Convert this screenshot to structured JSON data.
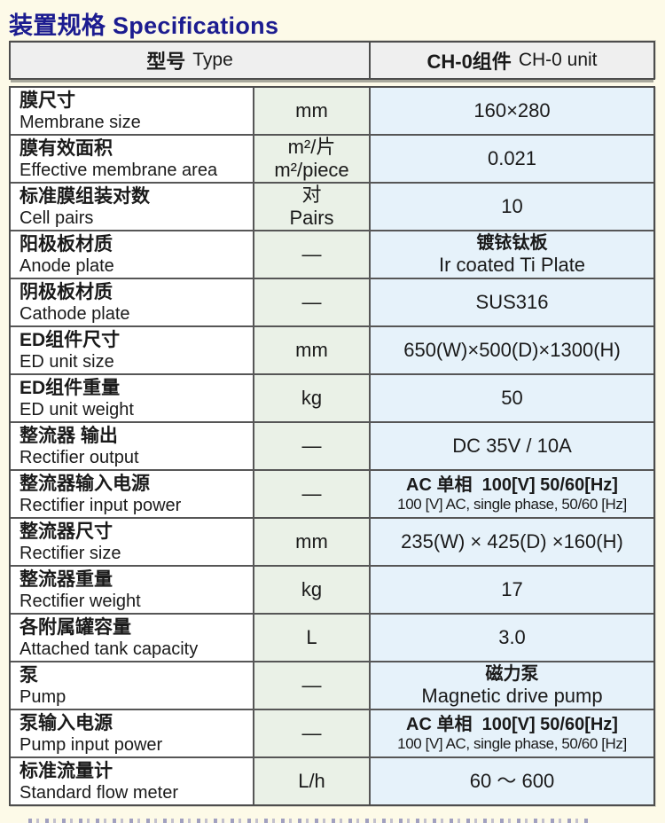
{
  "title": "装置规格 Specifications",
  "header": {
    "type_zh": "型号",
    "type_en": "Type",
    "model_zh": "CH-0组件",
    "model_en": "CH-0 unit"
  },
  "table": {
    "rows": [
      {
        "label_zh": "膜尺寸",
        "label_en": "Membrane size",
        "unit_lines": [
          "mm"
        ],
        "value_lines": [
          "160×280"
        ]
      },
      {
        "label_zh": "膜有效面积",
        "label_en": "Effective membrane area",
        "unit_lines": [
          "m²/片",
          "m²/piece"
        ],
        "value_lines": [
          "0.021"
        ]
      },
      {
        "label_zh": "标准膜组装对数",
        "label_en": "Cell pairs",
        "unit_lines": [
          "对",
          "Pairs"
        ],
        "value_lines": [
          "10"
        ]
      },
      {
        "label_zh": "阳极板材质",
        "label_en": "Anode plate",
        "unit_lines": [
          "—"
        ],
        "value_lines": [
          "镀铱钛板",
          "Ir coated Ti Plate"
        ]
      },
      {
        "label_zh": "阴极板材质",
        "label_en": "Cathode plate",
        "unit_lines": [
          "—"
        ],
        "value_lines": [
          "SUS316"
        ]
      },
      {
        "label_zh": "ED组件尺寸",
        "label_en": "ED unit size",
        "unit_lines": [
          "mm"
        ],
        "value_lines": [
          "650(W)×500(D)×1300(H)"
        ]
      },
      {
        "label_zh": "ED组件重量",
        "label_en": "ED unit weight",
        "unit_lines": [
          "kg"
        ],
        "value_lines": [
          "50"
        ]
      },
      {
        "label_zh": "整流器 输出",
        "label_en": "Rectifier output",
        "unit_lines": [
          "—"
        ],
        "value_lines": [
          "DC 35V / 10A"
        ]
      },
      {
        "label_zh": "整流器输入电源",
        "label_en": "Rectifier input power",
        "unit_lines": [
          "—"
        ],
        "value_lines": [
          "AC 单相  100[V] 50/60[Hz]",
          "100 [V] AC, single phase, 50/60 [Hz]"
        ]
      },
      {
        "label_zh": "整流器尺寸",
        "label_en": "Rectifier size",
        "unit_lines": [
          "mm"
        ],
        "value_lines": [
          "235(W) × 425(D) ×160(H)"
        ]
      },
      {
        "label_zh": "整流器重量",
        "label_en": "Rectifier weight",
        "unit_lines": [
          "kg"
        ],
        "value_lines": [
          "17"
        ]
      },
      {
        "label_zh": "各附属罐容量",
        "label_en": "Attached tank capacity",
        "unit_lines": [
          "L"
        ],
        "value_lines": [
          "3.0"
        ]
      },
      {
        "label_zh": "泵",
        "label_en": "Pump",
        "unit_lines": [
          "—"
        ],
        "value_lines": [
          "磁力泵",
          "Magnetic drive pump"
        ]
      },
      {
        "label_zh": "泵输入电源",
        "label_en": "Pump input power",
        "unit_lines": [
          "—"
        ],
        "value_lines": [
          "AC 单相  100[V] 50/60[Hz]",
          "100 [V] AC, single phase, 50/60 [Hz]"
        ]
      },
      {
        "label_zh": "标准流量计",
        "label_en": "Standard flow meter",
        "unit_lines": [
          "L/h"
        ],
        "value_lines": [
          "60 ～ 600"
        ]
      }
    ]
  },
  "colors": {
    "accent_title": "#1c1c90",
    "page_bg": "#fdfae8",
    "header_bg": "#efefef",
    "unit_col_bg": "#eaf1e7",
    "value_col_bg": "#e6f2fa",
    "border": "#4d4d4d"
  }
}
